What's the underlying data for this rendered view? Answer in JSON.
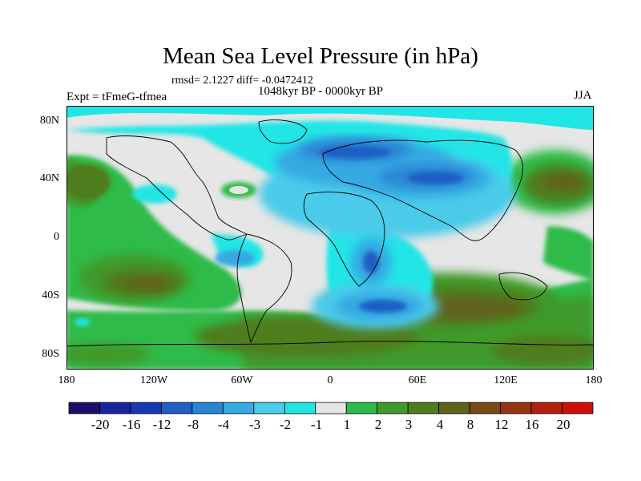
{
  "title": "Mean Sea Level Pressure (in hPa)",
  "stats_line": "rmsd= 2.1227 diff= -0.0472412",
  "period": "1048kyr BP - 0000kyr BP",
  "experiment": "Expt = tFmeG-tfmea",
  "season": "JJA",
  "lat_labels": [
    "80N",
    "40N",
    "0",
    "40S",
    "80S"
  ],
  "lon_labels": [
    "180",
    "120W",
    "60W",
    "0",
    "60E",
    "120E",
    "180"
  ],
  "colorbar": {
    "labels": [
      "-20",
      "-16",
      "-12",
      "-8",
      "-4",
      "-3",
      "-2",
      "-1",
      "1",
      "2",
      "3",
      "4",
      "8",
      "12",
      "16",
      "20"
    ],
    "colors": [
      "#1c0f6b",
      "#15249a",
      "#1838b4",
      "#1f5fc4",
      "#2a86d4",
      "#35a9e2",
      "#4ccbea",
      "#22e6e6",
      "#e6e6e6",
      "#2dbb4a",
      "#3f9a2c",
      "#4f7c1c",
      "#60621a",
      "#7a4a16",
      "#973310",
      "#b41e0a",
      "#d10f08"
    ]
  },
  "colors": {
    "background": "#ffffff",
    "neutral": "#e6e6e6",
    "coast": "#000000"
  }
}
